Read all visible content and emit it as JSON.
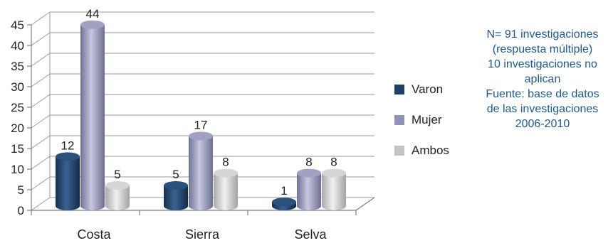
{
  "chart_data": {
    "type": "bar",
    "categories": [
      "Costa",
      "Sierra",
      "Selva"
    ],
    "series": [
      {
        "name": "Varon",
        "values": [
          12,
          5,
          1
        ]
      },
      {
        "name": "Mujer",
        "values": [
          44,
          17,
          8
        ]
      },
      {
        "name": "Ambos",
        "values": [
          5,
          8,
          8
        ]
      }
    ],
    "ylim": [
      0,
      45
    ],
    "yticks": [
      "0",
      "5",
      "10",
      "15",
      "20",
      "25",
      "30",
      "35",
      "40",
      "45"
    ],
    "grid": true,
    "legend_position": "right",
    "title": "",
    "xlabel": "",
    "ylabel": ""
  },
  "colors": {
    "Varon": "#1f3f66",
    "Mujer": "#8f92b4",
    "Ambos": "#c4c4c4",
    "note_text": "#1f5a8a",
    "grid": "#9a9a9a"
  },
  "note": {
    "lines": [
      "N= 91 investigaciones",
      "(respuesta múltiple)",
      "10 investigaciones no",
      "aplican",
      "Fuente: base de datos",
      "de las investigaciones",
      "2006-2010"
    ]
  }
}
